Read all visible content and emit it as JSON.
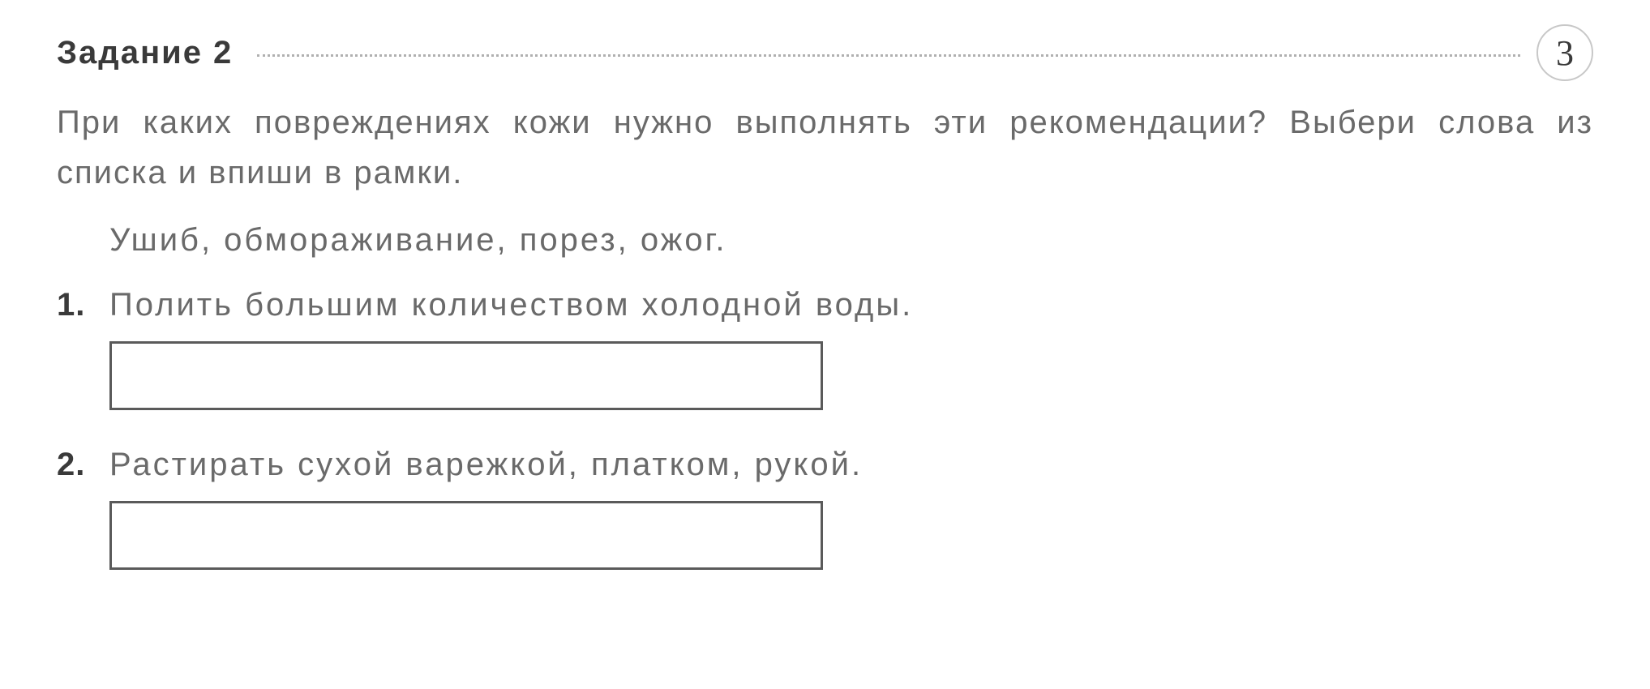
{
  "header": {
    "task_label": "Задание  2",
    "points": "3"
  },
  "question": "При каких повреждениях кожи нужно выполнять эти ре­комендации? Выбери слова из списка и впиши в рамки.",
  "word_list": "Ушиб,  обмораживание,  порез,  ожог.",
  "items": [
    {
      "number": "1.",
      "text": "Полить большим количеством холодной воды."
    },
    {
      "number": "2.",
      "text": "Растирать сухой варежкой, платком, рукой."
    }
  ],
  "styling": {
    "background_color": "#ffffff",
    "text_color": "#6a6a6a",
    "bold_color": "#3a3a3a",
    "dotted_color": "#b0b0b0",
    "circle_border_color": "#c8c8c8",
    "box_border_color": "#5a5a5a",
    "task_label_fontsize": 40,
    "body_fontsize": 40,
    "points_fontsize": 44,
    "answer_box_width": 880,
    "answer_box_height": 85,
    "answer_box_border_width": 3,
    "circle_size": 70
  }
}
